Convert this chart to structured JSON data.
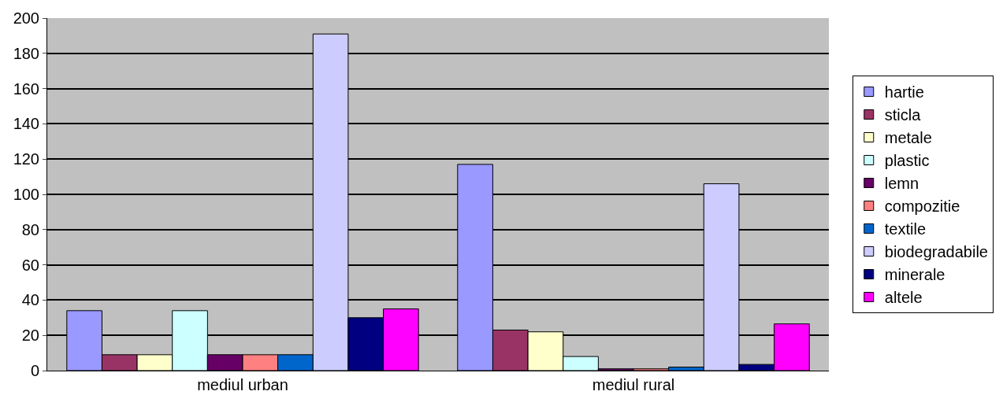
{
  "chart_data": {
    "type": "bar",
    "categories": [
      "mediul urban",
      "mediul rural"
    ],
    "series": [
      {
        "name": "hartie",
        "color": "#9999ff",
        "values": [
          34,
          117
        ]
      },
      {
        "name": "sticla",
        "color": "#993366",
        "values": [
          9,
          23
        ]
      },
      {
        "name": "metale",
        "color": "#ffffcc",
        "values": [
          9,
          22
        ]
      },
      {
        "name": "plastic",
        "color": "#ccffff",
        "values": [
          34,
          8
        ]
      },
      {
        "name": "lemn",
        "color": "#660066",
        "values": [
          9,
          1
        ]
      },
      {
        "name": "compozitie",
        "color": "#ff8080",
        "values": [
          9,
          1
        ]
      },
      {
        "name": "textile",
        "color": "#0066cc",
        "values": [
          9,
          2
        ]
      },
      {
        "name": "biodegradabile",
        "color": "#ccccff",
        "values": [
          191,
          106
        ]
      },
      {
        "name": "minerale",
        "color": "#000080",
        "values": [
          30,
          3.5
        ]
      },
      {
        "name": "altele",
        "color": "#ff00ff",
        "values": [
          35,
          26.5
        ]
      }
    ],
    "ylim": [
      0,
      200
    ],
    "yticks": [
      0,
      20,
      40,
      60,
      80,
      100,
      120,
      140,
      160,
      180,
      200
    ],
    "grid": "y",
    "legend": "right"
  }
}
